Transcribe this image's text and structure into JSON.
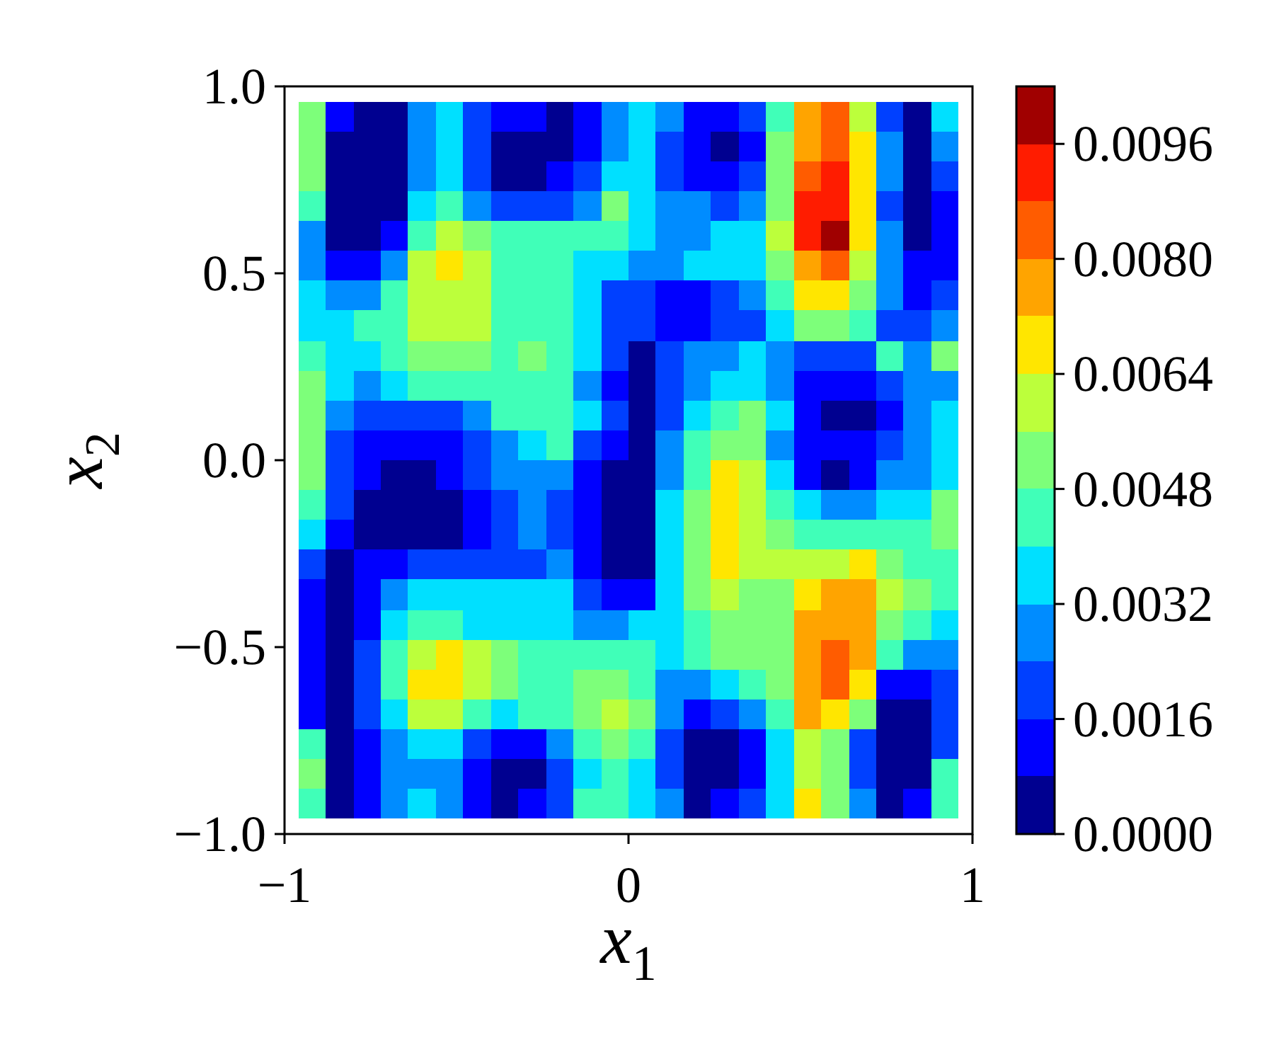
{
  "chart_data": {
    "type": "scatter",
    "marker": "square",
    "xlabel": "x$_{1}$",
    "ylabel": "x$_{2}$",
    "xlim": [
      -1,
      1
    ],
    "xticks": [
      {
        "value": -1,
        "label": "−1"
      },
      {
        "value": 0,
        "label": "0"
      },
      {
        "value": 1,
        "label": "1"
      }
    ],
    "ylim": [
      -1,
      1
    ],
    "yticks": [
      {
        "value": -1,
        "label": "−1.0"
      },
      {
        "value": -0.5,
        "label": "−0.5"
      },
      {
        "value": 0,
        "label": "0.0"
      },
      {
        "value": 0.5,
        "label": "0.5"
      },
      {
        "value": 1,
        "label": "1.0"
      }
    ],
    "clim": [
      0,
      0.0104
    ],
    "cticks": [
      {
        "value": 0,
        "label": "0.0000"
      },
      {
        "value": 0.0016,
        "label": "0.0016"
      },
      {
        "value": 0.0032,
        "label": "0.0032"
      },
      {
        "value": 0.0048,
        "label": "0.0048"
      },
      {
        "value": 0.0064,
        "label": "0.0064"
      },
      {
        "value": 0.008,
        "label": "0.0080"
      },
      {
        "value": 0.0096,
        "label": "0.0096"
      }
    ],
    "x": [
      -0.92,
      -0.84,
      -0.76,
      -0.68,
      -0.6,
      -0.52,
      -0.44,
      -0.36,
      -0.28,
      -0.2,
      -0.12,
      -0.04,
      0.04,
      0.12,
      0.2,
      0.28,
      0.36,
      0.44,
      0.52,
      0.6,
      0.68,
      0.76,
      0.84,
      0.92,
      -0.92,
      -0.84,
      -0.76,
      -0.68,
      -0.6,
      -0.52,
      -0.44,
      -0.36,
      -0.28,
      -0.2,
      -0.12,
      -0.04,
      0.04,
      0.12,
      0.2,
      0.28,
      0.36,
      0.44,
      0.52,
      0.6,
      0.68,
      0.76,
      0.84,
      0.92,
      -0.92,
      -0.84,
      -0.76,
      -0.68,
      -0.6,
      -0.52,
      -0.44,
      -0.36,
      -0.28,
      -0.2,
      -0.12,
      -0.04,
      0.04,
      0.12,
      0.2,
      0.28,
      0.36,
      0.44,
      0.52,
      0.6,
      0.68,
      0.76,
      0.84,
      0.92,
      -0.92,
      -0.84,
      -0.76,
      -0.68,
      -0.6,
      -0.52,
      -0.44,
      -0.36,
      -0.28,
      -0.2,
      -0.12,
      -0.04,
      0.04,
      0.12,
      0.2,
      0.28,
      0.36,
      0.44,
      0.52,
      0.6,
      0.68,
      0.76,
      0.84,
      0.92,
      -0.92,
      -0.84,
      -0.76,
      -0.68,
      -0.6,
      -0.52,
      -0.44,
      -0.36,
      -0.28,
      -0.2,
      -0.12,
      -0.04,
      0.04,
      0.12,
      0.2,
      0.28,
      0.36,
      0.44,
      0.52,
      0.6,
      0.68,
      0.76,
      0.84,
      0.92,
      -0.92,
      -0.84,
      -0.76,
      -0.68,
      -0.6,
      -0.52,
      -0.44,
      -0.36,
      -0.28,
      -0.2,
      -0.12,
      -0.04,
      0.04,
      0.12,
      0.2,
      0.28,
      0.36,
      0.44,
      0.52,
      0.6,
      0.68,
      0.76,
      0.84,
      0.92,
      -0.92,
      -0.84,
      -0.76,
      -0.68,
      -0.6,
      -0.52,
      -0.44,
      -0.36,
      -0.28,
      -0.2,
      -0.12,
      -0.04,
      0.04,
      0.12,
      0.2,
      0.28,
      0.36,
      0.44,
      0.52,
      0.6,
      0.68,
      0.76,
      0.84,
      0.92,
      -0.92,
      -0.84,
      -0.76,
      -0.68,
      -0.6,
      -0.52,
      -0.44,
      -0.36,
      -0.28,
      -0.2,
      -0.12,
      -0.04,
      0.04,
      0.12,
      0.2,
      0.28,
      0.36,
      0.44,
      0.52,
      0.6,
      0.68,
      0.76,
      0.84,
      0.92,
      -0.92,
      -0.84,
      -0.76,
      -0.68,
      -0.6,
      -0.52,
      -0.44,
      -0.36,
      -0.28,
      -0.2,
      -0.12,
      -0.04,
      0.04,
      0.12,
      0.2,
      0.28,
      0.36,
      0.44,
      0.52,
      0.6,
      0.68,
      0.76,
      0.84,
      0.92,
      -0.92,
      -0.84,
      -0.76,
      -0.68,
      -0.6,
      -0.52,
      -0.44,
      -0.36,
      -0.28,
      -0.2,
      -0.12,
      -0.04,
      0.04,
      0.12,
      0.2,
      0.28,
      0.36,
      0.44,
      0.52,
      0.6,
      0.68,
      0.76,
      0.84,
      0.92,
      -0.92,
      -0.84,
      -0.76,
      -0.68,
      -0.6,
      -0.52,
      -0.44,
      -0.36,
      -0.28,
      -0.2,
      -0.12,
      -0.04,
      0.04,
      0.12,
      0.2,
      0.28,
      0.36,
      0.44,
      0.52,
      0.6,
      0.68,
      0.76,
      0.84,
      0.92,
      -0.92,
      -0.84,
      -0.76,
      -0.68,
      -0.6,
      -0.52,
      -0.44,
      -0.36,
      -0.28,
      -0.2,
      -0.12,
      -0.04,
      0.04,
      0.12,
      0.2,
      0.28,
      0.36,
      0.44,
      0.52,
      0.6,
      0.68,
      0.76,
      0.84,
      0.92,
      -0.92,
      -0.84,
      -0.76,
      -0.68,
      -0.6,
      -0.52,
      -0.44,
      -0.36,
      -0.28,
      -0.2,
      -0.12,
      -0.04,
      0.04,
      0.12,
      0.2,
      0.28,
      0.36,
      0.44,
      0.52,
      0.6,
      0.68,
      0.76,
      0.84,
      0.92,
      -0.92,
      -0.84,
      -0.76,
      -0.68,
      -0.6,
      -0.52,
      -0.44,
      -0.36,
      -0.28,
      -0.2,
      -0.12,
      -0.04,
      0.04,
      0.12,
      0.2,
      0.28,
      0.36,
      0.44,
      0.52,
      0.6,
      0.68,
      0.76,
      0.84,
      0.92,
      -0.92,
      -0.84,
      -0.76,
      -0.68,
      -0.6,
      -0.52,
      -0.44,
      -0.36,
      -0.28,
      -0.2,
      -0.12,
      -0.04,
      0.04,
      0.12,
      0.2,
      0.28,
      0.36,
      0.44,
      0.52,
      0.6,
      0.68,
      0.76,
      0.84,
      0.92,
      -0.92,
      -0.84,
      -0.76,
      -0.68,
      -0.6,
      -0.52,
      -0.44,
      -0.36,
      -0.28,
      -0.2,
      -0.12,
      -0.04,
      0.04,
      0.12,
      0.2,
      0.28,
      0.36,
      0.44,
      0.52,
      0.6,
      0.68,
      0.76,
      0.84,
      0.92,
      -0.92,
      -0.84,
      -0.76,
      -0.68,
      -0.6,
      -0.52,
      -0.44,
      -0.36,
      -0.28,
      -0.2,
      -0.12,
      -0.04,
      0.04,
      0.12,
      0.2,
      0.28,
      0.36,
      0.44,
      0.52,
      0.6,
      0.68,
      0.76,
      0.84,
      0.92,
      -0.92,
      -0.84,
      -0.76,
      -0.68,
      -0.6,
      -0.52,
      -0.44,
      -0.36,
      -0.28,
      -0.2,
      -0.12,
      -0.04,
      0.04,
      0.12,
      0.2,
      0.28,
      0.36,
      0.44,
      0.52,
      0.6,
      0.68,
      0.76,
      0.84,
      0.92,
      -0.92,
      -0.84,
      -0.76,
      -0.68,
      -0.6,
      -0.52,
      -0.44,
      -0.36,
      -0.28,
      -0.2,
      -0.12,
      -0.04,
      0.04,
      0.12,
      0.2,
      0.28,
      0.36,
      0.44,
      0.52,
      0.6,
      0.68,
      0.76,
      0.84,
      0.92,
      -0.92,
      -0.84,
      -0.76,
      -0.68,
      -0.6,
      -0.52,
      -0.44,
      -0.36,
      -0.28,
      -0.2,
      -0.12,
      -0.04,
      0.04,
      0.12,
      0.2,
      0.28,
      0.36,
      0.44,
      0.52,
      0.6,
      0.68,
      0.76,
      0.84,
      0.92,
      -0.92,
      -0.84,
      -0.76,
      -0.68,
      -0.6,
      -0.52,
      -0.44,
      -0.36,
      -0.28,
      -0.2,
      -0.12,
      -0.04,
      0.04,
      0.12,
      0.2,
      0.28,
      0.36,
      0.44,
      0.52,
      0.6,
      0.68,
      0.76,
      0.84,
      0.92,
      -0.92,
      -0.84,
      -0.76,
      -0.68,
      -0.6,
      -0.52,
      -0.44,
      -0.36,
      -0.28,
      -0.2,
      -0.12,
      -0.04,
      0.04,
      0.12,
      0.2,
      0.28,
      0.36,
      0.44,
      0.52,
      0.6,
      0.68,
      0.76,
      0.84,
      0.92,
      -0.92,
      -0.84,
      -0.76,
      -0.68,
      -0.6,
      -0.52,
      -0.44,
      -0.36,
      -0.28,
      -0.2,
      -0.12,
      -0.04,
      0.04,
      0.12,
      0.2,
      0.28,
      0.36,
      0.44,
      0.52,
      0.6,
      0.68,
      0.76,
      0.84,
      0.92,
      -0.92,
      -0.84,
      -0.76,
      -0.68,
      -0.6,
      -0.52,
      -0.44,
      -0.36,
      -0.28,
      -0.2,
      -0.12,
      -0.04,
      0.04,
      0.12,
      0.2,
      0.28,
      0.36,
      0.44,
      0.52,
      0.6,
      0.68,
      0.76,
      0.84,
      0.92
    ],
    "values": [
      0.92,
      0.92,
      0.92,
      0.92,
      0.92,
      0.92,
      0.92,
      0.92,
      0.92,
      0.92,
      0.92,
      0.92,
      0.92,
      0.92,
      0.92,
      0.92,
      0.92,
      0.92,
      0.92,
      0.92,
      0.92,
      0.92,
      0.92,
      0.92,
      0.84,
      0.84,
      0.84,
      0.84,
      0.84,
      0.84,
      0.84,
      0.84,
      0.84,
      0.84,
      0.84,
      0.84,
      0.84,
      0.84,
      0.84,
      0.84,
      0.84,
      0.84,
      0.84,
      0.84,
      0.84,
      0.84,
      0.84,
      0.84,
      0.76,
      0.76,
      0.76,
      0.76,
      0.76,
      0.76,
      0.76,
      0.76,
      0.76,
      0.76,
      0.76,
      0.76,
      0.76,
      0.76,
      0.76,
      0.76,
      0.76,
      0.76,
      0.76,
      0.76,
      0.76,
      0.76,
      0.76,
      0.76,
      0.68,
      0.68,
      0.68,
      0.68,
      0.68,
      0.68,
      0.68,
      0.68,
      0.68,
      0.68,
      0.68,
      0.68,
      0.68,
      0.68,
      0.68,
      0.68,
      0.68,
      0.68,
      0.68,
      0.68,
      0.68,
      0.68,
      0.68,
      0.68,
      0.6,
      0.6,
      0.6,
      0.6,
      0.6,
      0.6,
      0.6,
      0.6,
      0.6,
      0.6,
      0.6,
      0.6,
      0.6,
      0.6,
      0.6,
      0.6,
      0.6,
      0.6,
      0.6,
      0.6,
      0.6,
      0.6,
      0.6,
      0.6,
      0.52,
      0.52,
      0.52,
      0.52,
      0.52,
      0.52,
      0.52,
      0.52,
      0.52,
      0.52,
      0.52,
      0.52,
      0.52,
      0.52,
      0.52,
      0.52,
      0.52,
      0.52,
      0.52,
      0.52,
      0.52,
      0.52,
      0.52,
      0.52,
      0.44,
      0.44,
      0.44,
      0.44,
      0.44,
      0.44,
      0.44,
      0.44,
      0.44,
      0.44,
      0.44,
      0.44,
      0.44,
      0.44,
      0.44,
      0.44,
      0.44,
      0.44,
      0.44,
      0.44,
      0.44,
      0.44,
      0.44,
      0.44,
      0.36,
      0.36,
      0.36,
      0.36,
      0.36,
      0.36,
      0.36,
      0.36,
      0.36,
      0.36,
      0.36,
      0.36,
      0.36,
      0.36,
      0.36,
      0.36,
      0.36,
      0.36,
      0.36,
      0.36,
      0.36,
      0.36,
      0.36,
      0.36,
      0.28,
      0.28,
      0.28,
      0.28,
      0.28,
      0.28,
      0.28,
      0.28,
      0.28,
      0.28,
      0.28,
      0.28,
      0.28,
      0.28,
      0.28,
      0.28,
      0.28,
      0.28,
      0.28,
      0.28,
      0.28,
      0.28,
      0.28,
      0.28,
      0.2,
      0.2,
      0.2,
      0.2,
      0.2,
      0.2,
      0.2,
      0.2,
      0.2,
      0.2,
      0.2,
      0.2,
      0.2,
      0.2,
      0.2,
      0.2,
      0.2,
      0.2,
      0.2,
      0.2,
      0.2,
      0.2,
      0.2,
      0.2,
      0.12,
      0.12,
      0.12,
      0.12,
      0.12,
      0.12,
      0.12,
      0.12,
      0.12,
      0.12,
      0.12,
      0.12,
      0.12,
      0.12,
      0.12,
      0.12,
      0.12,
      0.12,
      0.12,
      0.12,
      0.12,
      0.12,
      0.12,
      0.12,
      0.04,
      0.04,
      0.04,
      0.04,
      0.04,
      0.04,
      0.04,
      0.04,
      0.04,
      0.04,
      0.04,
      0.04,
      0.04,
      0.04,
      0.04,
      0.04,
      0.04,
      0.04,
      0.04,
      0.04,
      0.04,
      0.04,
      0.04,
      0.04,
      -0.04,
      -0.04,
      -0.04,
      -0.04,
      -0.04,
      -0.04,
      -0.04,
      -0.04,
      -0.04,
      -0.04,
      -0.04,
      -0.04,
      -0.04,
      -0.04,
      -0.04,
      -0.04,
      -0.04,
      -0.04,
      -0.04,
      -0.04,
      -0.04,
      -0.04,
      -0.04,
      -0.04,
      -0.12,
      -0.12,
      -0.12,
      -0.12,
      -0.12,
      -0.12,
      -0.12,
      -0.12,
      -0.12,
      -0.12,
      -0.12,
      -0.12,
      -0.12,
      -0.12,
      -0.12,
      -0.12,
      -0.12,
      -0.12,
      -0.12,
      -0.12,
      -0.12,
      -0.12,
      -0.12,
      -0.12,
      -0.2,
      -0.2,
      -0.2,
      -0.2,
      -0.2,
      -0.2,
      -0.2,
      -0.2,
      -0.2,
      -0.2,
      -0.2,
      -0.2,
      -0.2,
      -0.2,
      -0.2,
      -0.2,
      -0.2,
      -0.2,
      -0.2,
      -0.2,
      -0.2,
      -0.2,
      -0.2,
      -0.2,
      -0.28,
      -0.28,
      -0.28,
      -0.28,
      -0.28,
      -0.28,
      -0.28,
      -0.28,
      -0.28,
      -0.28,
      -0.28,
      -0.28,
      -0.28,
      -0.28,
      -0.28,
      -0.28,
      -0.28,
      -0.28,
      -0.28,
      -0.28,
      -0.28,
      -0.28,
      -0.28,
      -0.28,
      -0.36,
      -0.36,
      -0.36,
      -0.36,
      -0.36,
      -0.36,
      -0.36,
      -0.36,
      -0.36,
      -0.36,
      -0.36,
      -0.36,
      -0.36,
      -0.36,
      -0.36,
      -0.36,
      -0.36,
      -0.36,
      -0.36,
      -0.36,
      -0.36,
      -0.36,
      -0.36,
      -0.36,
      -0.44,
      -0.44,
      -0.44,
      -0.44,
      -0.44,
      -0.44,
      -0.44,
      -0.44,
      -0.44,
      -0.44,
      -0.44,
      -0.44,
      -0.44,
      -0.44,
      -0.44,
      -0.44,
      -0.44,
      -0.44,
      -0.44,
      -0.44,
      -0.44,
      -0.44,
      -0.44,
      -0.44,
      -0.52,
      -0.52,
      -0.52,
      -0.52,
      -0.52,
      -0.52,
      -0.52,
      -0.52,
      -0.52,
      -0.52,
      -0.52,
      -0.52,
      -0.52,
      -0.52,
      -0.52,
      -0.52,
      -0.52,
      -0.52,
      -0.52,
      -0.52,
      -0.52,
      -0.52,
      -0.52,
      -0.52,
      -0.6,
      -0.6,
      -0.6,
      -0.6,
      -0.6,
      -0.6,
      -0.6,
      -0.6,
      -0.6,
      -0.6,
      -0.6,
      -0.6,
      -0.6,
      -0.6,
      -0.6,
      -0.6,
      -0.6,
      -0.6,
      -0.6,
      -0.6,
      -0.6,
      -0.6,
      -0.6,
      -0.6,
      -0.68,
      -0.68,
      -0.68,
      -0.68,
      -0.68,
      -0.68,
      -0.68,
      -0.68,
      -0.68,
      -0.68,
      -0.68,
      -0.68,
      -0.68,
      -0.68,
      -0.68,
      -0.68,
      -0.68,
      -0.68,
      -0.68,
      -0.68,
      -0.68,
      -0.68,
      -0.68,
      -0.68,
      -0.76,
      -0.76,
      -0.76,
      -0.76,
      -0.76,
      -0.76,
      -0.76,
      -0.76,
      -0.76,
      -0.76,
      -0.76,
      -0.76,
      -0.76,
      -0.76,
      -0.76,
      -0.76,
      -0.76,
      -0.76,
      -0.76,
      -0.76,
      -0.76,
      -0.76,
      -0.76,
      -0.76,
      -0.84,
      -0.84,
      -0.84,
      -0.84,
      -0.84,
      -0.84,
      -0.84,
      -0.84,
      -0.84,
      -0.84,
      -0.84,
      -0.84,
      -0.84,
      -0.84,
      -0.84,
      -0.84,
      -0.84,
      -0.84,
      -0.84,
      -0.84,
      -0.84,
      -0.84,
      -0.84,
      -0.84,
      -0.92,
      -0.92,
      -0.92,
      -0.92,
      -0.92,
      -0.92,
      -0.92,
      -0.92,
      -0.92,
      -0.92,
      -0.92,
      -0.92,
      -0.92,
      -0.92,
      -0.92,
      -0.92,
      -0.92,
      -0.92,
      -0.92,
      -0.92,
      -0.92,
      -0.92,
      -0.92,
      -0.92
    ],
    "cvalues": [
      0.0052,
      0.0012,
      0.0004,
      0.0004,
      0.0028,
      0.0036,
      0.002,
      0.0012,
      0.0012,
      0.0004,
      0.0012,
      0.0028,
      0.0036,
      0.0028,
      0.0012,
      0.0012,
      0.002,
      0.0044,
      0.0076,
      0.0084,
      0.006,
      0.002,
      0.0004,
      0.0036,
      0.0052,
      0.0004,
      0.0004,
      0.0004,
      0.0028,
      0.0036,
      0.002,
      0.0004,
      0.0004,
      0.0004,
      0.0012,
      0.0028,
      0.0036,
      0.002,
      0.0012,
      0.0004,
      0.0012,
      0.0052,
      0.0076,
      0.0084,
      0.0068,
      0.0028,
      0.0004,
      0.0028,
      0.0052,
      0.0004,
      0.0004,
      0.0004,
      0.0028,
      0.0036,
      0.002,
      0.0004,
      0.0004,
      0.0012,
      0.002,
      0.0036,
      0.0036,
      0.002,
      0.0012,
      0.0012,
      0.002,
      0.0052,
      0.0084,
      0.0092,
      0.0068,
      0.0028,
      0.0004,
      0.002,
      0.0044,
      0.0004,
      0.0004,
      0.0004,
      0.0036,
      0.0044,
      0.0028,
      0.002,
      0.002,
      0.002,
      0.0028,
      0.0052,
      0.0036,
      0.0028,
      0.0028,
      0.002,
      0.0028,
      0.0052,
      0.0092,
      0.0092,
      0.0068,
      0.002,
      0.0004,
      0.0012,
      0.0028,
      0.0004,
      0.0004,
      0.0012,
      0.0044,
      0.006,
      0.0052,
      0.0044,
      0.0044,
      0.0044,
      0.0044,
      0.0044,
      0.0036,
      0.0028,
      0.0028,
      0.0036,
      0.0036,
      0.006,
      0.0092,
      0.01,
      0.0068,
      0.0028,
      0.0004,
      0.0012,
      0.0028,
      0.0012,
      0.0012,
      0.0028,
      0.006,
      0.0068,
      0.006,
      0.0044,
      0.0044,
      0.0044,
      0.0036,
      0.0036,
      0.0028,
      0.0028,
      0.0036,
      0.0036,
      0.0036,
      0.0052,
      0.0076,
      0.0084,
      0.006,
      0.0028,
      0.0012,
      0.0012,
      0.0036,
      0.0028,
      0.0028,
      0.0044,
      0.006,
      0.006,
      0.006,
      0.0044,
      0.0044,
      0.0044,
      0.0036,
      0.002,
      0.002,
      0.0012,
      0.0012,
      0.002,
      0.0028,
      0.0044,
      0.0068,
      0.0068,
      0.0052,
      0.0028,
      0.0012,
      0.002,
      0.0036,
      0.0036,
      0.0044,
      0.0044,
      0.006,
      0.006,
      0.006,
      0.0044,
      0.0044,
      0.0044,
      0.0036,
      0.002,
      0.002,
      0.0012,
      0.0012,
      0.002,
      0.002,
      0.0036,
      0.0052,
      0.0052,
      0.0044,
      0.002,
      0.002,
      0.0028,
      0.0044,
      0.0036,
      0.0036,
      0.0044,
      0.0052,
      0.0052,
      0.0052,
      0.0044,
      0.0052,
      0.0044,
      0.0036,
      0.002,
      0.0004,
      0.002,
      0.0028,
      0.0028,
      0.0036,
      0.0028,
      0.002,
      0.002,
      0.002,
      0.0044,
      0.0028,
      0.0052,
      0.0052,
      0.0036,
      0.0028,
      0.0036,
      0.0044,
      0.0044,
      0.0044,
      0.0044,
      0.0044,
      0.0044,
      0.0028,
      0.0012,
      0.0004,
      0.002,
      0.0028,
      0.0036,
      0.0036,
      0.0028,
      0.0012,
      0.0012,
      0.0012,
      0.002,
      0.0028,
      0.0028,
      0.0052,
      0.0028,
      0.002,
      0.002,
      0.002,
      0.002,
      0.0028,
      0.0044,
      0.0044,
      0.0044,
      0.0036,
      0.002,
      0.0004,
      0.002,
      0.0036,
      0.0044,
      0.0052,
      0.0036,
      0.0012,
      0.0004,
      0.0004,
      0.0012,
      0.0028,
      0.0036,
      0.0052,
      0.002,
      0.0012,
      0.0012,
      0.0012,
      0.0012,
      0.002,
      0.0028,
      0.0036,
      0.0044,
      0.002,
      0.0012,
      0.0004,
      0.0028,
      0.0044,
      0.0052,
      0.0052,
      0.0028,
      0.0012,
      0.0012,
      0.0012,
      0.002,
      0.0028,
      0.0036,
      0.0052,
      0.002,
      0.0012,
      0.0004,
      0.0004,
      0.0012,
      0.002,
      0.0028,
      0.0028,
      0.0028,
      0.0012,
      0.0004,
      0.0004,
      0.0028,
      0.0044,
      0.0068,
      0.006,
      0.0036,
      0.0012,
      0.0004,
      0.0012,
      0.0028,
      0.0028,
      0.0036,
      0.0044,
      0.002,
      0.0004,
      0.0004,
      0.0004,
      0.0004,
      0.0012,
      0.002,
      0.0028,
      0.002,
      0.0012,
      0.0004,
      0.0004,
      0.0036,
      0.0052,
      0.0068,
      0.006,
      0.0044,
      0.0036,
      0.0028,
      0.0028,
      0.0036,
      0.0036,
      0.0052,
      0.0036,
      0.0012,
      0.0004,
      0.0004,
      0.0004,
      0.0004,
      0.0012,
      0.002,
      0.0028,
      0.002,
      0.0012,
      0.0004,
      0.0004,
      0.0036,
      0.0052,
      0.0068,
      0.006,
      0.0052,
      0.0044,
      0.0044,
      0.0044,
      0.0044,
      0.0044,
      0.0052,
      0.002,
      0.0004,
      0.0012,
      0.0012,
      0.002,
      0.002,
      0.002,
      0.002,
      0.002,
      0.0028,
      0.0012,
      0.0004,
      0.0004,
      0.0036,
      0.0052,
      0.0068,
      0.006,
      0.006,
      0.006,
      0.006,
      0.0068,
      0.0052,
      0.0044,
      0.0044,
      0.0012,
      0.0004,
      0.0012,
      0.0028,
      0.0036,
      0.0036,
      0.0036,
      0.0036,
      0.0036,
      0.0036,
      0.002,
      0.0012,
      0.0012,
      0.0036,
      0.0052,
      0.006,
      0.0052,
      0.0052,
      0.0068,
      0.0076,
      0.0076,
      0.006,
      0.0052,
      0.0044,
      0.0012,
      0.0004,
      0.0012,
      0.0036,
      0.0044,
      0.0044,
      0.0036,
      0.0036,
      0.0036,
      0.0036,
      0.0028,
      0.0028,
      0.0036,
      0.0036,
      0.0044,
      0.0052,
      0.0052,
      0.0052,
      0.0076,
      0.0076,
      0.0076,
      0.0052,
      0.0044,
      0.0036,
      0.0012,
      0.0004,
      0.002,
      0.0044,
      0.006,
      0.0068,
      0.006,
      0.0052,
      0.0044,
      0.0044,
      0.0044,
      0.0044,
      0.0044,
      0.0036,
      0.0044,
      0.0052,
      0.0052,
      0.0052,
      0.0076,
      0.0084,
      0.0076,
      0.0044,
      0.0028,
      0.0028,
      0.0012,
      0.0004,
      0.002,
      0.0044,
      0.0068,
      0.0068,
      0.006,
      0.0052,
      0.0044,
      0.0044,
      0.0052,
      0.0052,
      0.0044,
      0.0028,
      0.0028,
      0.0036,
      0.0044,
      0.0052,
      0.0076,
      0.0084,
      0.0068,
      0.0012,
      0.0012,
      0.002,
      0.0012,
      0.0004,
      0.002,
      0.0036,
      0.006,
      0.006,
      0.0044,
      0.0036,
      0.0044,
      0.0044,
      0.0052,
      0.006,
      0.0052,
      0.0028,
      0.0012,
      0.002,
      0.0028,
      0.0044,
      0.0076,
      0.0068,
      0.0052,
      0.0004,
      0.0004,
      0.002,
      0.0044,
      0.0004,
      0.0012,
      0.0028,
      0.0036,
      0.0036,
      0.002,
      0.0012,
      0.0012,
      0.0028,
      0.0044,
      0.0052,
      0.0044,
      0.002,
      0.0004,
      0.0004,
      0.0012,
      0.0036,
      0.006,
      0.0052,
      0.002,
      0.0004,
      0.0004,
      0.002,
      0.0052,
      0.0004,
      0.0012,
      0.0028,
      0.0028,
      0.0028,
      0.0012,
      0.0004,
      0.0004,
      0.002,
      0.0036,
      0.0044,
      0.0036,
      0.002,
      0.0004,
      0.0004,
      0.0012,
      0.0036,
      0.006,
      0.0052,
      0.002,
      0.0004,
      0.0004,
      0.0044,
      0.0044,
      0.0004,
      0.0012,
      0.0028,
      0.0036,
      0.0028,
      0.0012,
      0.0004,
      0.0012,
      0.002,
      0.0044,
      0.0044,
      0.0036,
      0.0028,
      0.0004,
      0.0012,
      0.002,
      0.0036,
      0.0068,
      0.0052,
      0.0028,
      0.0004,
      0.0012,
      0.0044
    ]
  }
}
